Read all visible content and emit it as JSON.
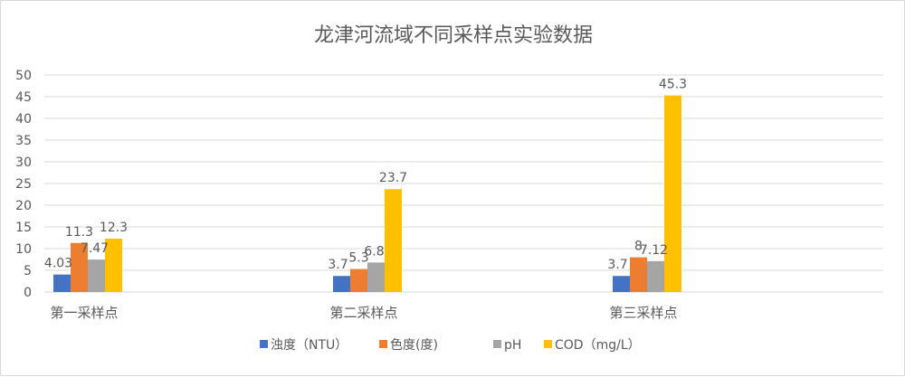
{
  "chart_data": {
    "type": "bar",
    "title": "龙津河流域不同采样点实验数据",
    "categories": [
      "第一采样点",
      "第二采样点",
      "第三采样点"
    ],
    "series": [
      {
        "name": "浊度（NTU）",
        "color": "#4472c4",
        "values": [
          4.03,
          3.7,
          3.7
        ],
        "labels": [
          "4.03",
          "3.7",
          "3.7"
        ]
      },
      {
        "name": "色度(度)",
        "color": "#ed7d31",
        "values": [
          11.3,
          5.3,
          8
        ],
        "labels": [
          "11.3",
          "5.3",
          "8"
        ]
      },
      {
        "name": "pH",
        "color": "#a5a5a5",
        "values": [
          7.47,
          6.8,
          7.12
        ],
        "labels": [
          "7.47",
          "6.8",
          "7.12"
        ]
      },
      {
        "name": "COD（mg/L）",
        "color": "#ffc000",
        "values": [
          12.3,
          23.7,
          45.3
        ],
        "labels": [
          "12.3",
          "23.7",
          "45.3"
        ]
      }
    ],
    "yticks": [
      "0",
      "5",
      "10",
      "15",
      "20",
      "25",
      "30",
      "35",
      "40",
      "45",
      "50"
    ],
    "ylim": [
      0,
      50
    ],
    "grid": true,
    "legend_position": "bottom"
  }
}
